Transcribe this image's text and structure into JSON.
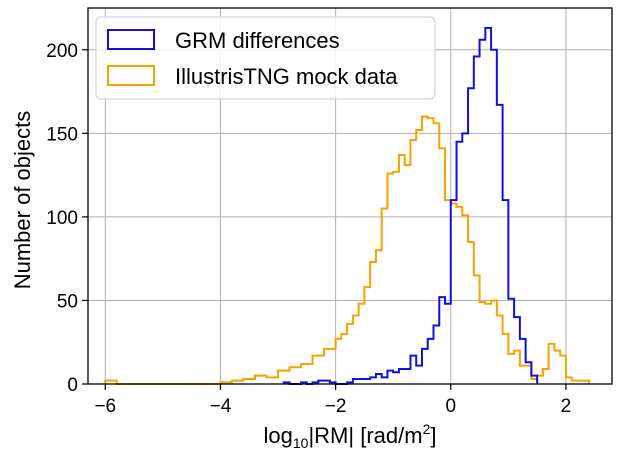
{
  "chart_data": {
    "type": "histogram",
    "xlabel_base": "log",
    "xlabel_sub": "10",
    "xlabel_mid": "|RM| [rad/m",
    "xlabel_sup": "2",
    "xlabel_end": "]",
    "ylabel": "Number of objects",
    "xlim": [
      -6.3,
      2.8
    ],
    "ylim": [
      0,
      225
    ],
    "x_ticks": [
      -6,
      -4,
      -2,
      0,
      2
    ],
    "x_tick_labels": [
      "−6",
      "−4",
      "−2",
      "0",
      "2"
    ],
    "y_ticks": [
      0,
      50,
      100,
      150,
      200
    ],
    "y_tick_labels": [
      "0",
      "50",
      "100",
      "150",
      "200"
    ],
    "grid": true,
    "legend_position": "upper-left",
    "series": [
      {
        "name": "GRM differences",
        "color": "#1010dd",
        "bin_edges": [
          -2.9,
          -2.8,
          -2.7,
          -2.6,
          -2.5,
          -2.4,
          -2.3,
          -2.2,
          -2.1,
          -2.0,
          -1.9,
          -1.8,
          -1.7,
          -1.6,
          -1.5,
          -1.4,
          -1.3,
          -1.2,
          -1.1,
          -1.0,
          -0.9,
          -0.8,
          -0.7,
          -0.6,
          -0.5,
          -0.4,
          -0.3,
          -0.2,
          -0.1,
          0.0,
          0.1,
          0.2,
          0.3,
          0.4,
          0.5,
          0.6,
          0.7,
          0.8,
          0.9,
          1.0,
          1.1,
          1.2,
          1.3,
          1.4,
          1.5
        ],
        "counts": [
          1,
          0,
          0,
          1,
          0,
          1,
          2,
          2,
          1,
          0,
          0,
          1,
          3,
          3,
          3,
          4,
          6,
          4,
          8,
          7,
          9,
          9,
          17,
          11,
          21,
          27,
          35,
          52,
          48,
          110,
          145,
          150,
          177,
          196,
          206,
          213,
          200,
          167,
          110,
          51,
          40,
          27,
          13,
          5
        ]
      },
      {
        "name": "IllustrisTNG mock data",
        "color": "#f5a300",
        "bin_edges": [
          -6.0,
          -5.8,
          -5.6,
          -4.0,
          -3.8,
          -3.6,
          -3.4,
          -3.2,
          -3.0,
          -2.8,
          -2.6,
          -2.4,
          -2.2,
          -2.0,
          -1.9,
          -1.8,
          -1.7,
          -1.6,
          -1.5,
          -1.4,
          -1.3,
          -1.2,
          -1.1,
          -1.0,
          -0.9,
          -0.8,
          -0.7,
          -0.6,
          -0.5,
          -0.4,
          -0.3,
          -0.2,
          -0.1,
          0.0,
          0.1,
          0.2,
          0.3,
          0.4,
          0.5,
          0.6,
          0.7,
          0.8,
          0.9,
          1.0,
          1.1,
          1.2,
          1.3,
          1.4,
          1.5,
          1.6,
          1.7,
          1.8,
          1.9,
          2.0,
          2.1,
          2.2,
          2.4
        ],
        "counts": [
          2,
          0,
          0,
          1,
          2,
          3,
          5,
          4,
          8,
          10,
          12,
          17,
          21,
          27,
          30,
          36,
          41,
          48,
          58,
          73,
          80,
          105,
          126,
          127,
          137,
          131,
          146,
          152,
          160,
          159,
          156,
          141,
          110,
          108,
          106,
          101,
          85,
          65,
          49,
          48,
          50,
          41,
          30,
          18,
          20,
          11,
          11,
          3,
          5,
          9,
          24,
          20,
          17,
          4,
          2,
          2
        ]
      }
    ]
  }
}
